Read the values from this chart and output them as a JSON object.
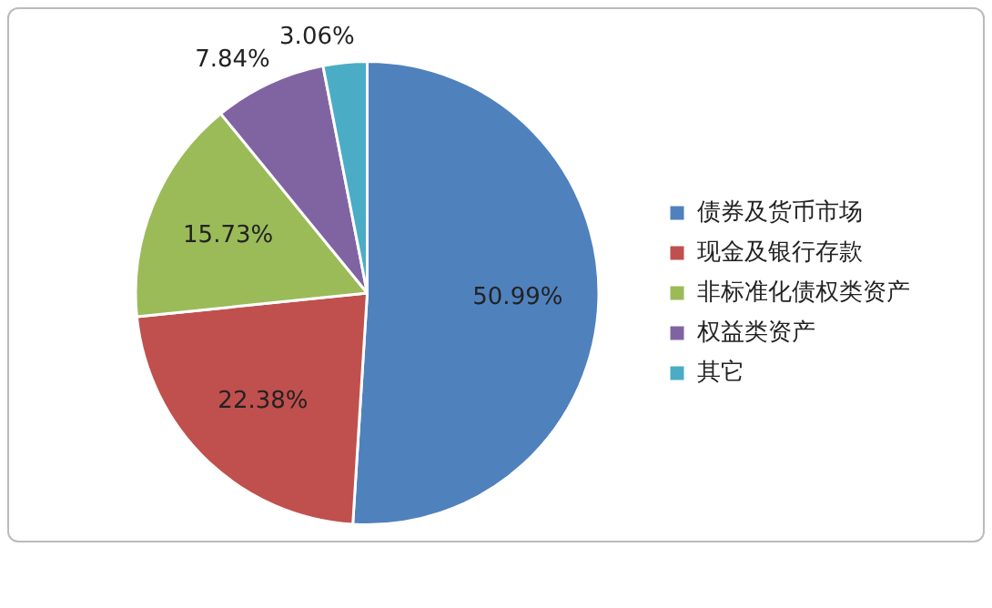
{
  "chart_data": {
    "type": "pie",
    "categories": [
      "债券及货币市场",
      "现金及银行存款",
      "非标准化债权类资产",
      "权益类资产",
      "其它"
    ],
    "values": [
      50.99,
      22.38,
      15.73,
      7.84,
      3.06
    ],
    "colors": [
      "#4f81bd",
      "#c0504d",
      "#9bbb59",
      "#8064a2",
      "#4bacc6"
    ],
    "value_labels": [
      "50.99%",
      "22.38%",
      "15.73%",
      "7.84%",
      "3.06%"
    ],
    "legend": "right"
  }
}
